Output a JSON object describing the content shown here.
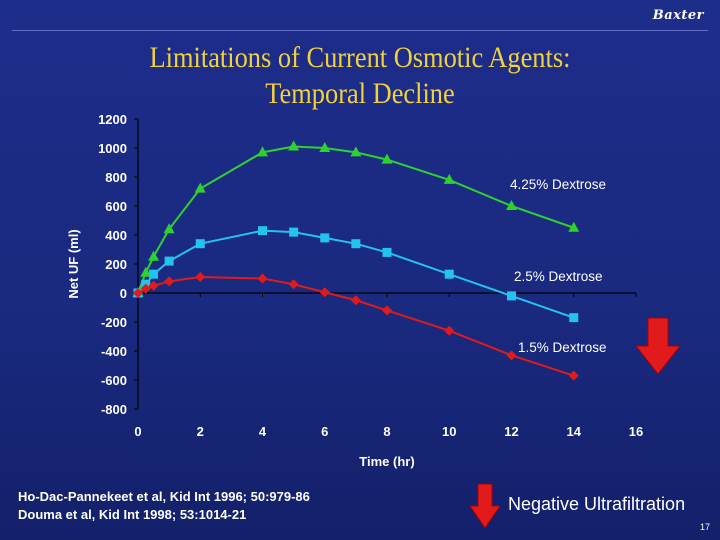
{
  "header": {
    "brand": "Baxter",
    "title_line1": "Limitations of Current Osmotic Agents:",
    "title_line2": "Temporal Decline"
  },
  "references": [
    "Ho-Dac-Pannekeet et al, Kid Int 1996; 50:979-86",
    "Douma et al, Kid Int 1998; 53:1014-21"
  ],
  "legend_arrow_label": "Negative Ultrafiltration",
  "page_number": "17",
  "colors": {
    "background": "#1c2c86",
    "title": "#f2d23a",
    "series_4_25": "#2fd12f",
    "series_2_5": "#22c3ee",
    "series_1_5": "#e11b1b",
    "arrow": "#e11b1b"
  },
  "icons": {
    "negative_arrow": "red-down-arrow-icon"
  },
  "chart_data": {
    "type": "line",
    "xlabel": "Time (hr)",
    "ylabel": "Net UF (ml)",
    "xlim": [
      0,
      16
    ],
    "ylim": [
      -800,
      1200
    ],
    "x_ticks": [
      0,
      2,
      4,
      6,
      8,
      10,
      12,
      14,
      16
    ],
    "y_ticks": [
      1200,
      1000,
      800,
      600,
      400,
      200,
      0,
      -200,
      -400,
      -600,
      -800
    ],
    "grid": false,
    "series": [
      {
        "name": "4.25% Dextrose",
        "marker": "triangle",
        "color": "#2fd12f",
        "x": [
          0,
          0.25,
          0.5,
          1,
          2,
          4,
          5,
          6,
          7,
          8,
          10,
          12,
          14
        ],
        "y": [
          0,
          140,
          250,
          440,
          720,
          970,
          1010,
          1000,
          970,
          920,
          780,
          600,
          450
        ]
      },
      {
        "name": "2.5% Dextrose",
        "marker": "square",
        "color": "#22c3ee",
        "x": [
          0,
          0.25,
          0.5,
          1,
          2,
          4,
          5,
          6,
          7,
          8,
          10,
          12,
          14
        ],
        "y": [
          0,
          60,
          130,
          220,
          340,
          430,
          420,
          380,
          340,
          280,
          130,
          -20,
          -170
        ]
      },
      {
        "name": "1.5% Dextrose",
        "marker": "diamond",
        "color": "#e11b1b",
        "x": [
          0,
          0.25,
          0.5,
          1,
          2,
          4,
          5,
          6,
          7,
          8,
          10,
          12,
          14
        ],
        "y": [
          0,
          30,
          50,
          80,
          110,
          100,
          60,
          5,
          -50,
          -120,
          -260,
          -430,
          -570
        ]
      }
    ]
  }
}
